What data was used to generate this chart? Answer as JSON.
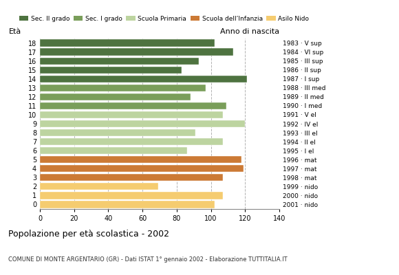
{
  "ages": [
    18,
    17,
    16,
    15,
    14,
    13,
    12,
    11,
    10,
    9,
    8,
    7,
    6,
    5,
    4,
    3,
    2,
    1,
    0
  ],
  "values": [
    102,
    113,
    93,
    83,
    121,
    97,
    88,
    109,
    107,
    120,
    91,
    107,
    86,
    118,
    119,
    107,
    69,
    107,
    102
  ],
  "right_labels": [
    "1983 · V sup",
    "1984 · VI sup",
    "1985 · III sup",
    "1986 · II sup",
    "1987 · I sup",
    "1988 · III med",
    "1989 · II med",
    "1990 · I med",
    "1991 · V el",
    "1992 · IV el",
    "1993 · III el",
    "1994 · II el",
    "1995 · I el",
    "1996 · mat",
    "1997 · mat",
    "1998 · mat",
    "1999 · nido",
    "2000 · nido",
    "2001 · nido"
  ],
  "categories": {
    "Sec. II grado": {
      "ages": [
        18,
        17,
        16,
        15,
        14
      ],
      "color": "#4e7340"
    },
    "Sec. I grado": {
      "ages": [
        13,
        12,
        11
      ],
      "color": "#7a9e5a"
    },
    "Scuola Primaria": {
      "ages": [
        10,
        9,
        8,
        7,
        6
      ],
      "color": "#bdd4a0"
    },
    "Scuola dell'Infanzia": {
      "ages": [
        5,
        4,
        3
      ],
      "color": "#cc7a35"
    },
    "Asilo Nido": {
      "ages": [
        2,
        1,
        0
      ],
      "color": "#f5cc70"
    }
  },
  "legend_colors": {
    "Sec. II grado": "#4e7340",
    "Sec. I grado": "#7a9e5a",
    "Scuola Primaria": "#bdd4a0",
    "Scuola dell’Infanzia": "#cc7a35",
    "Asilo Nido": "#f5cc70"
  },
  "xlim": [
    0,
    140
  ],
  "xticks": [
    0,
    20,
    40,
    60,
    80,
    100,
    120,
    140
  ],
  "title": "Popolazione per età scolastica - 2002",
  "subtitle": "COMUNE DI MONTE ARGENTARIO (GR) - Dati ISTAT 1° gennaio 2002 - Elaborazione TUTTITALIA.IT",
  "ylabel_left": "Età",
  "ylabel_right": "Anno di nascita",
  "background_color": "#ffffff",
  "bar_height": 0.78
}
